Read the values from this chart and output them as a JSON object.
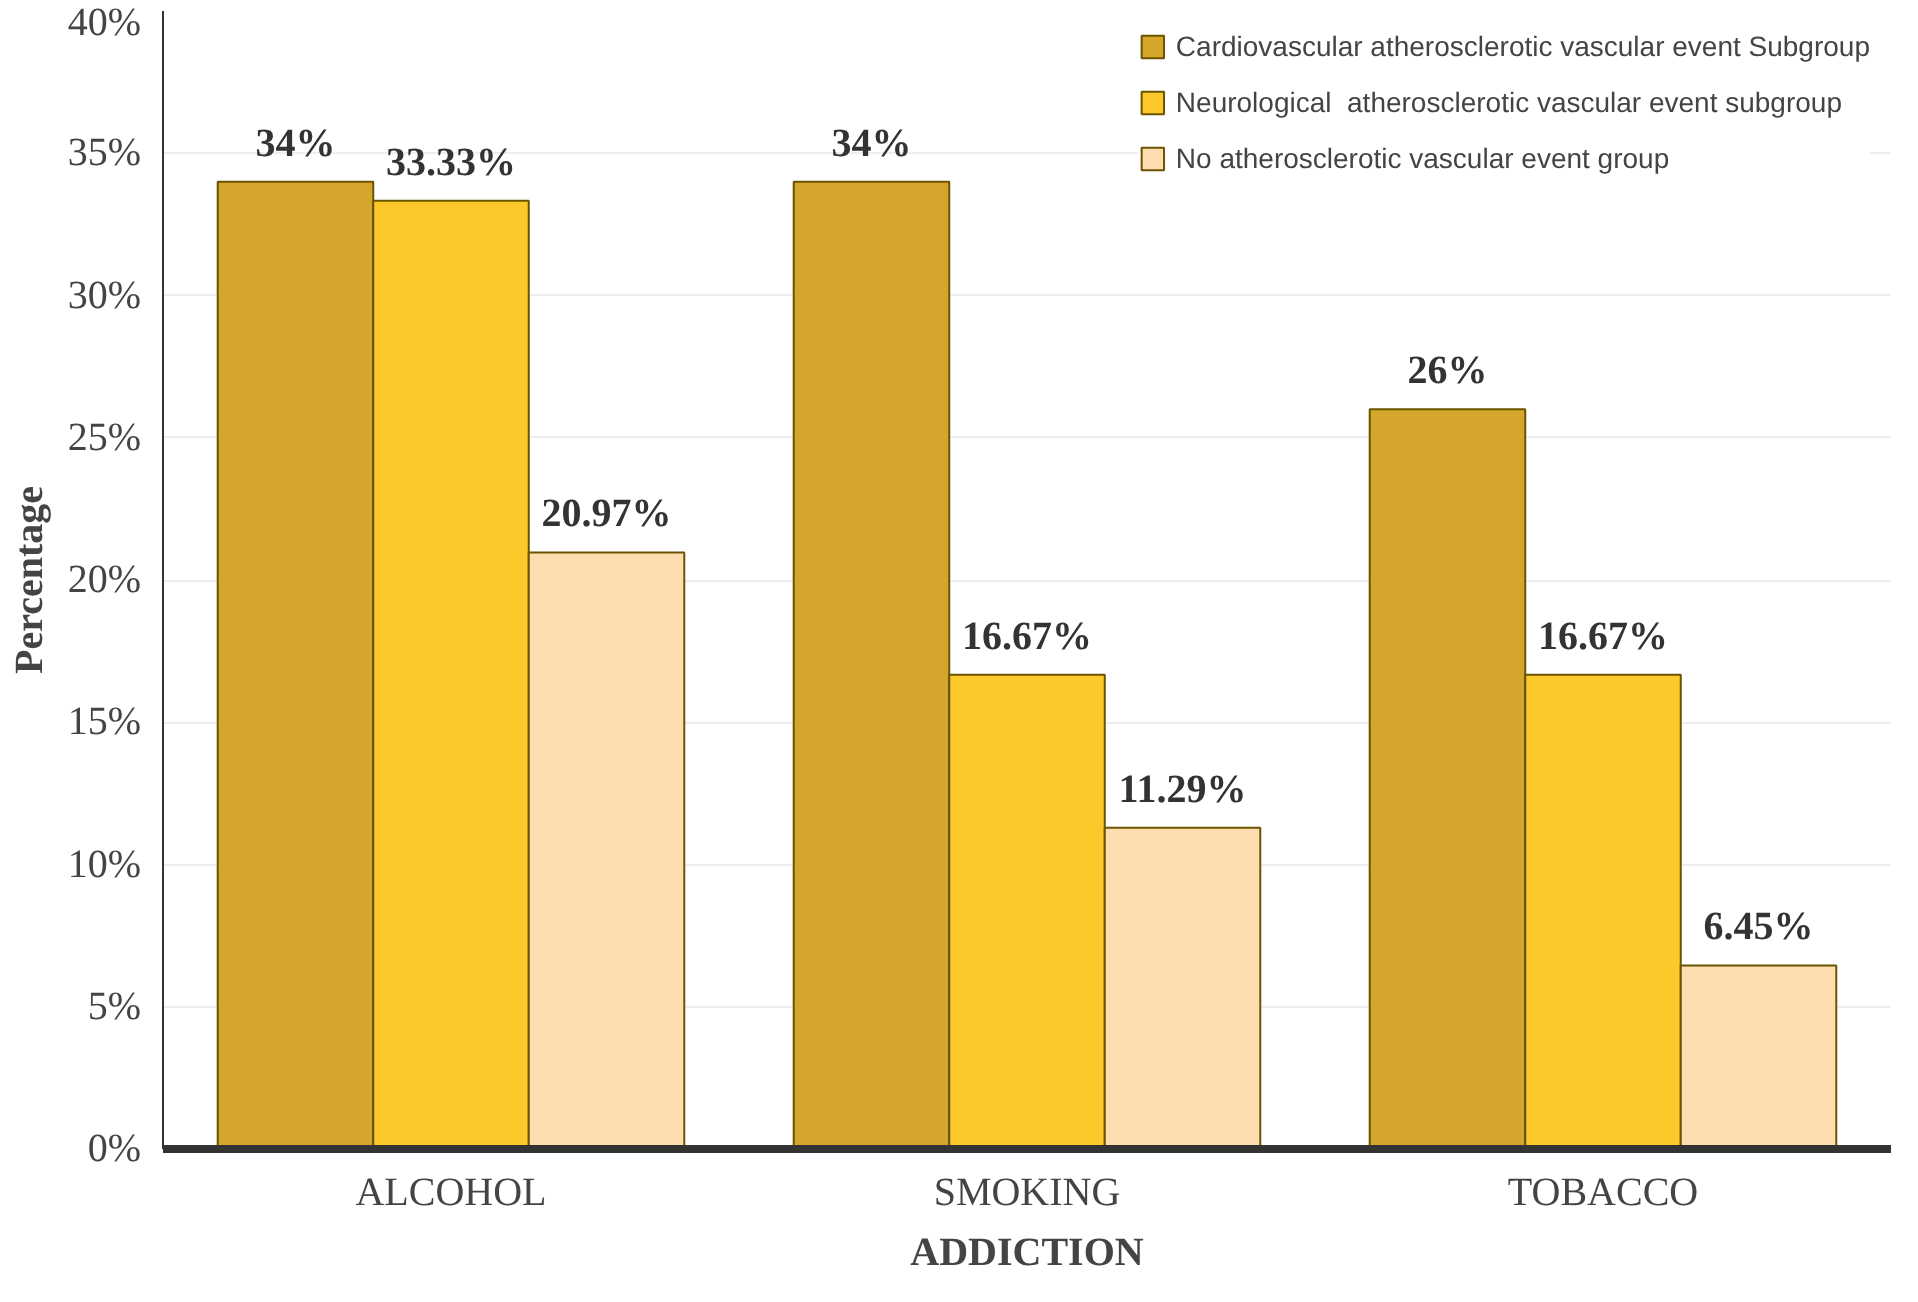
{
  "chart_data": {
    "type": "bar",
    "xlabel": "ADDICTION",
    "ylabel": "Percentage",
    "categories": [
      "ALCOHOL",
      "SMOKING",
      "TOBACCO"
    ],
    "series": [
      {
        "name": "Cardiovascular atherosclerotic vascular event Subgroup",
        "color": "#d4a72c",
        "values": [
          34,
          34,
          26
        ],
        "value_labels": [
          "34%",
          "34%",
          "26%"
        ]
      },
      {
        "name": "Neurological  atherosclerotic vascular event subgroup",
        "color": "#fdc82a",
        "values": [
          33.33,
          16.67,
          16.67
        ],
        "value_labels": [
          "33.33%",
          "16.67%",
          "16.67%"
        ]
      },
      {
        "name": "No atherosclerotic vascular event group",
        "color": "#fddcaf",
        "values": [
          20.97,
          11.29,
          6.45
        ],
        "value_labels": [
          "20.97%",
          "11.29%",
          "6.45%"
        ]
      }
    ],
    "ylim": [
      0,
      40
    ],
    "yticks": [
      {
        "value": 0,
        "label": "0%"
      },
      {
        "value": 5,
        "label": "5%"
      },
      {
        "value": 10,
        "label": "10%"
      },
      {
        "value": 15,
        "label": "15%"
      },
      {
        "value": 20,
        "label": "20%"
      },
      {
        "value": 25,
        "label": "25%"
      },
      {
        "value": 30,
        "label": "30%"
      },
      {
        "value": 35,
        "label": "35%"
      },
      {
        "value": 40,
        "label": "40%"
      }
    ],
    "grid": "y",
    "legend": "top right"
  }
}
